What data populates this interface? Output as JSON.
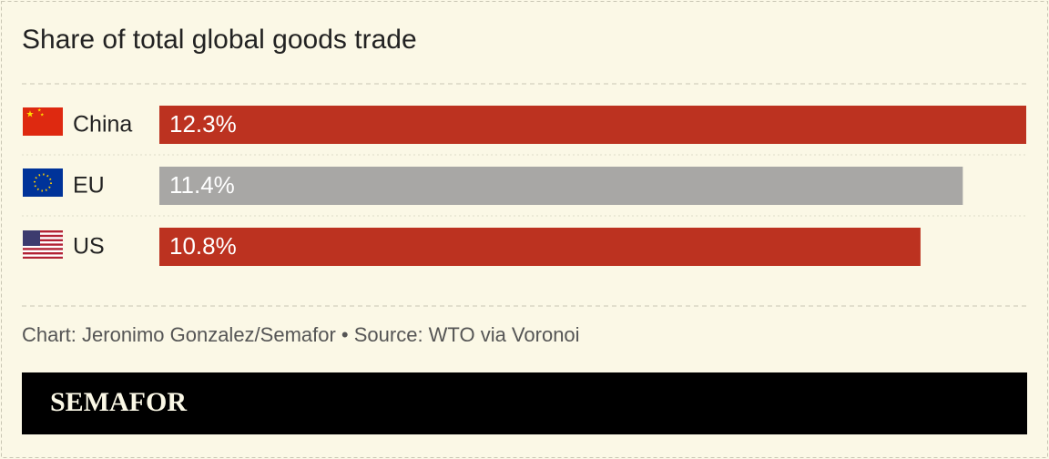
{
  "chart_data": {
    "type": "bar",
    "orientation": "horizontal",
    "title": "Share of total global goods trade",
    "categories": [
      "China",
      "EU",
      "US"
    ],
    "values": [
      12.3,
      11.4,
      10.8
    ],
    "value_labels": [
      "12.3%",
      "11.4%",
      "10.8%"
    ],
    "colors": [
      "#bc3220",
      "#a8a7a5",
      "#bc3220"
    ],
    "caption": "Chart: Jeronimo Gonzalez/Semafor • Source: WTO via Voronoi",
    "brand": "SEMAFOR"
  }
}
